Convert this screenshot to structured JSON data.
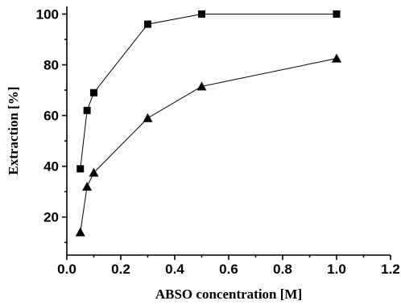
{
  "chart_data": {
    "type": "line",
    "title": "",
    "xlabel": "ABSO concentration [M]",
    "ylabel": "Extraction [%]",
    "xlim": [
      0.0,
      1.2
    ],
    "ylim": [
      5,
      103
    ],
    "x_ticks": [
      0.0,
      0.2,
      0.4,
      0.6,
      0.8,
      1.0,
      1.2
    ],
    "x_tick_labels": [
      "0.0",
      "0.2",
      "0.4",
      "0.6",
      "0.8",
      "1.0",
      "1.2"
    ],
    "y_ticks": [
      20,
      40,
      60,
      80,
      100
    ],
    "y_tick_labels": [
      "20",
      "40",
      "60",
      "80",
      "100"
    ],
    "grid": false,
    "legend": "none",
    "series": [
      {
        "marker": "square",
        "x": [
          0.05,
          0.075,
          0.1,
          0.3,
          0.5,
          1.0
        ],
        "y": [
          39,
          62,
          69,
          96,
          100,
          100
        ]
      },
      {
        "marker": "triangle",
        "x": [
          0.05,
          0.075,
          0.1,
          0.3,
          0.5,
          1.0
        ],
        "y": [
          14,
          32,
          37.5,
          59,
          71.5,
          82.5
        ]
      }
    ]
  }
}
